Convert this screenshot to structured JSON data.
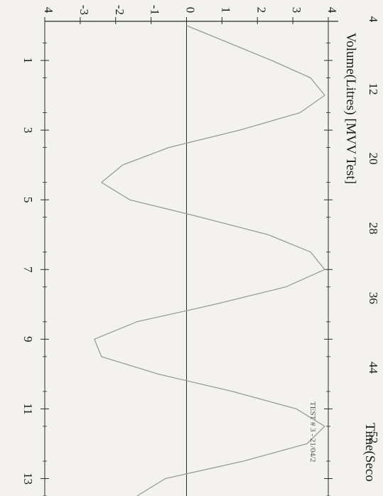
{
  "chart_data": {
    "type": "line",
    "orientation": "rotated-90-clockwise",
    "title": "Volume(Litres) [MVV Test]",
    "xlabel": "Time(Seco",
    "ylabel": "Volume(Litres) [MVV Test]",
    "annotation": "TEST # 3 - 21/04/2",
    "ylim": [
      -4,
      4
    ],
    "y_ticks": [
      "4",
      "3",
      "2",
      "1",
      "0",
      "-1",
      "-2",
      "-3",
      "-4"
    ],
    "x_ticks_top": [
      "4",
      "12",
      "20",
      "28",
      "36",
      "44",
      "52"
    ],
    "x_ticks_bottom": [
      "1",
      "3",
      "5",
      "7",
      "9",
      "11",
      "13"
    ],
    "grid": false,
    "line_color": "#9a9a9a",
    "series": [
      {
        "x": [
          0,
          0.5,
          1.0,
          1.5,
          2.0,
          2.5,
          3.0,
          3.5,
          4.0,
          4.5,
          5.0,
          5.5,
          6.0,
          6.5,
          7.0,
          7.5,
          8.0,
          8.5,
          9.0,
          9.5,
          10.0,
          10.5,
          11.0,
          11.5,
          12.0,
          12.5,
          13.0,
          13.5
        ],
        "y": [
          0,
          1.2,
          2.4,
          3.5,
          3.9,
          3.2,
          1.5,
          -0.5,
          -1.8,
          -2.4,
          -1.6,
          0.4,
          2.3,
          3.5,
          3.9,
          2.8,
          0.8,
          -1.4,
          -2.6,
          -2.4,
          -0.8,
          1.3,
          3.1,
          3.9,
          3.4,
          1.6,
          -0.6,
          -1.4
        ]
      }
    ]
  }
}
